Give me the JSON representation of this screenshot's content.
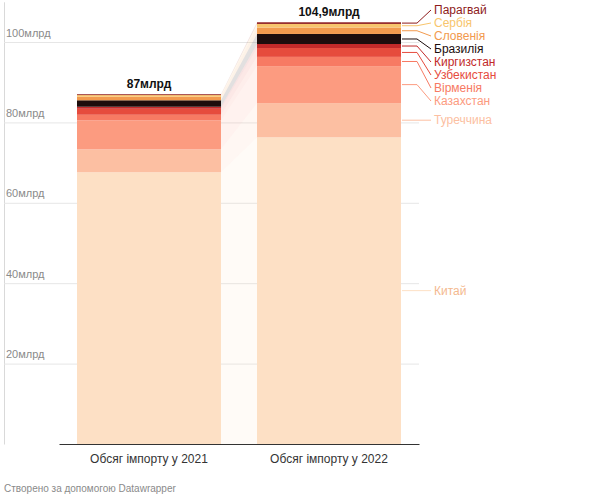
{
  "chart_data": {
    "type": "bar",
    "stacked": true,
    "grid": true,
    "categories": [
      "Обсяг імпорту у 2021",
      "Обсяг імпорту у 2022"
    ],
    "ylim": [
      0,
      110
    ],
    "yticks": [
      {
        "value": 20,
        "label": "20млрд"
      },
      {
        "value": 40,
        "label": "40млрд"
      },
      {
        "value": 60,
        "label": "60млрд"
      },
      {
        "value": 80,
        "label": "80млрд"
      },
      {
        "value": 100,
        "label": "100млрд"
      }
    ],
    "series": [
      {
        "name": "Китай",
        "color": "#fde0c5",
        "values": [
          67.6,
          76.3
        ]
      },
      {
        "name": "Туреччина",
        "color": "#fcbfa2",
        "values": [
          5.7,
          8.5
        ]
      },
      {
        "name": "Казахстан",
        "color": "#fc9b80",
        "values": [
          7.2,
          9.2
        ]
      },
      {
        "name": "Вірменія",
        "color": "#f77a63",
        "values": [
          1.4,
          2.3
        ]
      },
      {
        "name": "Узбекистан",
        "color": "#e64b3d",
        "values": [
          1.5,
          2.2
        ]
      },
      {
        "name": "Киргизстан",
        "color": "#c22a2a",
        "values": [
          0.5,
          1.0
        ]
      },
      {
        "name": "Бразилія",
        "color": "#1c0d0d",
        "values": [
          1.6,
          2.5
        ]
      },
      {
        "name": "Словенія",
        "color": "#f29a4e",
        "values": [
          0.9,
          1.6
        ]
      },
      {
        "name": "Сербія",
        "color": "#f8c56c",
        "values": [
          0.4,
          0.9
        ]
      },
      {
        "name": "Парагвай",
        "color": "#8e1b1b",
        "values": [
          0.2,
          0.4
        ]
      }
    ],
    "totals": {
      "values": [
        87,
        104.9
      ],
      "value_labels": [
        "87млрд",
        "104,9млрд"
      ]
    },
    "footer": "Створено за допомогою Datawrapper"
  }
}
